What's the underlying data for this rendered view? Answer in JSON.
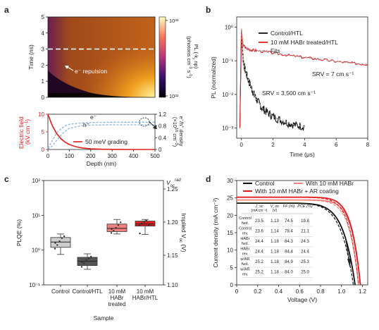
{
  "panel_letters": {
    "a": "a",
    "b": "b",
    "c": "c",
    "d": "d"
  },
  "colors": {
    "red": "#e02020",
    "black": "#111111",
    "pink": "#f08080",
    "gray_box": "#555555",
    "light_box": "#cccccc",
    "blue_dash": "#8ab4e0",
    "fits": "#a9a9a9"
  },
  "chart_data": [
    {
      "panel": "a-top",
      "type": "heatmap",
      "ylabel": "Time (ns)",
      "ylim": [
        0,
        5
      ],
      "yticks": [
        "0",
        "1",
        "2",
        "3",
        "4",
        "5"
      ],
      "dashed_time": 3,
      "annotation": "e⁻ repulsion",
      "colorbar": {
        "label": "PL (-k_r np) (photons cm⁻³ s⁻¹)",
        "ticks": [
          "10³³",
          "10²²"
        ],
        "log_range": [
          22,
          33.5
        ]
      }
    },
    {
      "panel": "a-bottom",
      "type": "line",
      "xlabel": "Depth (nm)",
      "xlim": [
        0,
        500
      ],
      "xticks": [
        "0",
        "100",
        "200",
        "300",
        "400",
        "500"
      ],
      "ylabel": "Electric field (kV cm⁻¹)",
      "ylim": [
        0,
        10
      ],
      "yticks": [
        "0",
        "5",
        "10"
      ],
      "y2label": "e⁻/h⁺ density (×10¹⁶ cm⁻³)",
      "y2lim": [
        0,
        1.2
      ],
      "y2ticks": [
        "0",
        "0.4",
        "0.8",
        "1.2"
      ],
      "labels": {
        "e": "e⁻",
        "h": "h⁺"
      },
      "series": [
        {
          "name": "50 meV grading",
          "x": [
            0,
            20,
            40,
            60,
            80,
            100,
            130,
            160,
            200,
            250,
            300,
            400,
            500
          ],
          "y": [
            10,
            6.8,
            4.6,
            3.1,
            2.1,
            1.4,
            0.8,
            0.45,
            0.2,
            0.08,
            0.03,
            0,
            0
          ]
        },
        {
          "name": "e",
          "x": [
            0,
            20,
            40,
            60,
            80,
            100,
            150,
            200,
            300,
            400,
            500
          ],
          "y": [
            0.05,
            0.3,
            0.55,
            0.7,
            0.8,
            0.86,
            0.9,
            0.92,
            0.93,
            0.93,
            0.93
          ]
        },
        {
          "name": "h",
          "x": [
            0,
            20,
            40,
            60,
            80,
            100,
            150,
            200,
            300,
            400,
            500
          ],
          "y": [
            0.02,
            0.12,
            0.3,
            0.48,
            0.62,
            0.72,
            0.8,
            0.83,
            0.84,
            0.84,
            0.84
          ]
        }
      ]
    },
    {
      "panel": "b",
      "type": "line",
      "xlabel": "Time (μs)",
      "xlim": [
        -0.3,
        8
      ],
      "xticks": [
        "0",
        "2",
        "4",
        "6",
        "8"
      ],
      "ylabel": "PL (normalized)",
      "ylog": true,
      "ylim": [
        0.0005,
        2
      ],
      "yticks": [
        "10⁰",
        "10⁻¹",
        "10⁻²",
        "10⁻³"
      ],
      "series": [
        {
          "name": "Control/HTL",
          "x": [
            -0.1,
            0,
            0.1,
            0.2,
            0.4,
            0.6,
            0.8,
            1.0,
            1.3,
            1.6,
            2.0,
            2.5,
            3.0,
            3.5,
            4.0
          ],
          "y": [
            0.001,
            0.8,
            0.12,
            0.06,
            0.03,
            0.017,
            0.01,
            0.0065,
            0.004,
            0.003,
            0.0022,
            0.0017,
            0.0014,
            0.0012,
            0.0011
          ]
        },
        {
          "name": "10 mM HABr treated/HTL",
          "x": [
            -0.1,
            0,
            0.1,
            0.3,
            0.6,
            1,
            2,
            3,
            4,
            5,
            6,
            7,
            8
          ],
          "y": [
            0.001,
            0.9,
            0.3,
            0.23,
            0.21,
            0.2,
            0.17,
            0.145,
            0.125,
            0.11,
            0.095,
            0.085,
            0.078
          ]
        }
      ],
      "legend": [
        "Control/HTL",
        "10 mM HABr treated/HTL",
        "Fits"
      ],
      "annotations": [
        "SRV = 7 cm s⁻¹",
        "SRV = 3,500 cm s⁻¹"
      ]
    },
    {
      "panel": "c",
      "type": "box",
      "xlabel": "Sample",
      "ylabel": "PLQE (%)",
      "ylog": true,
      "ylim": [
        0.1,
        100
      ],
      "yticks": [
        "10²",
        "10¹",
        "10⁰",
        "10⁻¹"
      ],
      "y2label": "Implied V_oc (V)",
      "y2title": "V_oc^rad",
      "y2ticks": [
        "1.25",
        "1.20",
        "1.15",
        "1.10"
      ],
      "categories": [
        "Control",
        "Control/HTL",
        "10 mM HABr treated",
        "10 mM HABr/HTL"
      ],
      "boxes": [
        {
          "min": 0.75,
          "q1": 1.2,
          "median": 1.7,
          "q3": 2.3,
          "max": 2.9
        },
        {
          "min": 0.28,
          "q1": 0.36,
          "median": 0.48,
          "q3": 0.62,
          "max": 0.78
        },
        {
          "min": 2.9,
          "q1": 3.4,
          "median": 4.2,
          "q3": 5.6,
          "max": 7.6
        },
        {
          "min": 2.8,
          "q1": 4.9,
          "median": 5.6,
          "q3": 6.8,
          "max": 7.6
        }
      ],
      "points": [
        [
          1.1,
          1.4,
          1.8,
          2.2,
          2.5,
          1.6
        ],
        [
          0.33,
          0.42,
          0.52,
          0.58,
          0.65,
          0.45
        ],
        [
          3.1,
          3.6,
          4.4,
          5.2,
          6.3,
          4.0
        ],
        [
          5.1,
          5.9,
          6.4,
          7.0,
          5.3,
          3.0
        ]
      ]
    },
    {
      "panel": "d",
      "type": "line",
      "xlabel": "Voltage (V)",
      "xlim": [
        0,
        1.25
      ],
      "xticks": [
        "0",
        "0.2",
        "0.4",
        "0.6",
        "0.8",
        "1.0",
        "1.2"
      ],
      "ylabel": "Current density (mA cm⁻²)",
      "ylim": [
        0,
        30
      ],
      "yticks": [
        "0",
        "5",
        "10",
        "15",
        "20",
        "25",
        "30"
      ],
      "legend": [
        "Control",
        "With 10 mM HABr",
        "With 10 mM HABr + AR coating"
      ],
      "series": [
        {
          "name": "Control",
          "voc": 1.13,
          "jsc": 23.5
        },
        {
          "name": "With 10 mM HABr",
          "voc": 1.18,
          "jsc": 24.4
        },
        {
          "name": "With 10 mM HABr + AR coating",
          "voc": 1.18,
          "jsc": 25.2
        }
      ],
      "table": {
        "headers": [
          "J_sc (mA cm⁻²)",
          "V_oc (V)",
          "FF (%)",
          "PCE (%)"
        ],
        "header_top": [
          "J_sc",
          "V_oc",
          "FF (%)",
          "PCE (%)"
        ],
        "header_sub": [
          "(mA cm⁻²)",
          "(V)",
          "",
          ""
        ],
        "rows": [
          {
            "label": [
              "Control",
              "fwd."
            ],
            "values": [
              "23.5",
              "1.13",
              "74.5",
              "19.8"
            ]
          },
          {
            "label": [
              "Control",
              "rev."
            ],
            "values": [
              "23.6",
              "1.14",
              "78.4",
              "21.1"
            ]
          },
          {
            "label": [
              "HABr",
              "fwd."
            ],
            "values": [
              "24.4",
              "1.18",
              "84.3",
              "24.3"
            ]
          },
          {
            "label": [
              "HABr",
              "rev."
            ],
            "values": [
              "24.4",
              "1.18",
              "84.4",
              "24.4"
            ]
          },
          {
            "label": [
              "w/AR",
              "fwd."
            ],
            "values": [
              "25.2",
              "1.18",
              "84.9",
              "25.3"
            ]
          },
          {
            "label": [
              "w/AR",
              "rev."
            ],
            "values": [
              "25.2",
              "1.18",
              "84.0",
              "25.0"
            ]
          }
        ]
      }
    }
  ]
}
